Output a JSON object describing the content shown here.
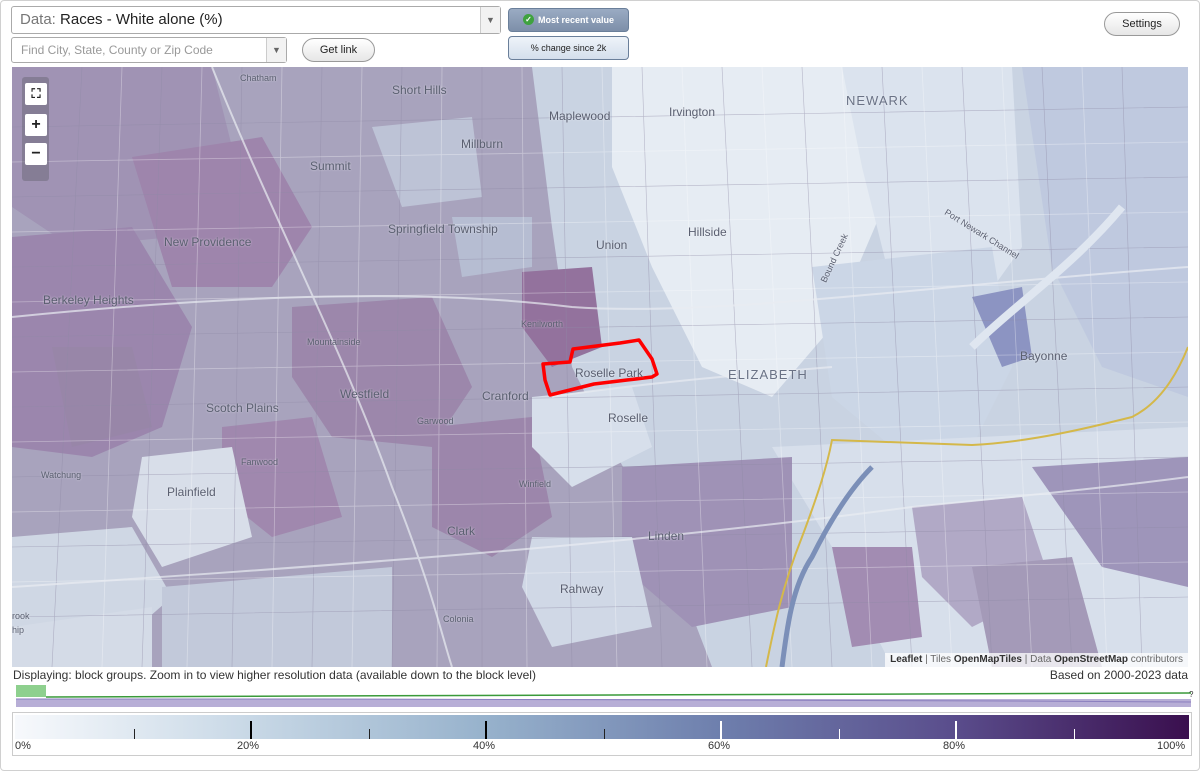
{
  "top": {
    "data_prefix": "Data:",
    "data_value": "Races - White alone (%)",
    "search_placeholder": "Find City, State, County or Zip Code",
    "get_link": "Get link",
    "most_recent": "Most recent value",
    "pct_change": "% change since 2k",
    "settings": "Settings"
  },
  "map": {
    "labels": {
      "chatham": "Chatham",
      "short_hills": "Short Hills",
      "maplewood": "Maplewood",
      "irvington": "Irvington",
      "newark": "NEWARK",
      "millburn": "Millburn",
      "summit": "Summit",
      "springfield": "Springfield Township",
      "union": "Union",
      "hillside": "Hillside",
      "new_providence": "New Providence",
      "berkeley_heights": "Berkeley Heights",
      "kenilworth": "Kenilworth",
      "mountainside": "Mountainside",
      "roselle_park": "Roselle Park",
      "elizabeth": "ELIZABETH",
      "bayonne": "Bayonne",
      "westfield": "Westfield",
      "cranford": "Cranford",
      "scotch_plains": "Scotch Plains",
      "garwood": "Garwood",
      "roselle": "Roselle",
      "fanwood": "Fanwood",
      "watchung": "Watchung",
      "plainfield": "Plainfield",
      "winfield": "Winfield",
      "clark": "Clark",
      "linden": "Linden",
      "rahway": "Rahway",
      "colonia": "Colonia",
      "port_newark": "Port Newark Channel",
      "bound_creek": "Bound Creek",
      "brook": "rook",
      "ship": "hip"
    },
    "attribution": {
      "leaflet": "Leaflet",
      "sep1": " | Tiles ",
      "tiles": "OpenMapTiles",
      "sep2": " | Data ",
      "osm": "OpenStreetMap",
      "contrib": " contributors"
    }
  },
  "status": {
    "displaying": "Displaying: block groups. Zoom in to view higher resolution data (available down to the block level)",
    "based_on": "Based on 2000-2023 data",
    "hist_q": "?"
  },
  "legend": {
    "labels": [
      "0%",
      "20%",
      "40%",
      "60%",
      "80%",
      "100%"
    ],
    "colors": [
      "#f7f9fc",
      "#c8d8e6",
      "#97b2cc",
      "#6e7fad",
      "#5a4d8c",
      "#3a0f4e"
    ]
  },
  "colors": {
    "highlight": "#ff0000",
    "boundary": "#d4b84a",
    "water": "#8fa6c8"
  }
}
